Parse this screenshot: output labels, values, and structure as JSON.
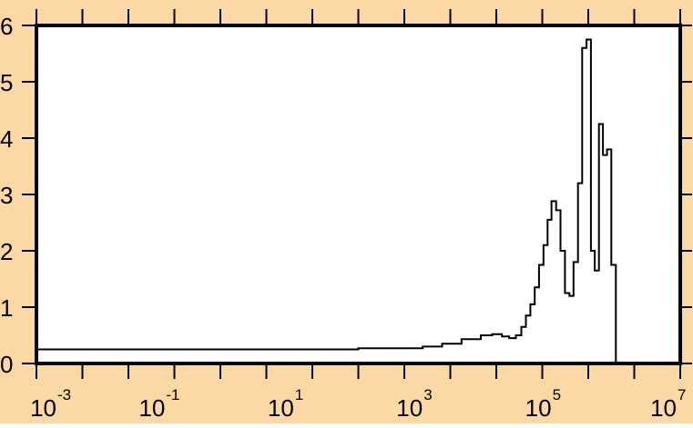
{
  "colors": {
    "background": "#fcd9a4",
    "plot_background": "#ffffff",
    "line": "#000000"
  },
  "chart_data": {
    "type": "line",
    "title": "",
    "xlabel": "",
    "ylabel": "",
    "x_scale": "log",
    "xlim": [
      0.001,
      10000000
    ],
    "ylim": [
      0,
      6
    ],
    "grid": false,
    "legend": "none",
    "x_ticks": [
      {
        "base": "10",
        "exp": "-3",
        "value": 0.001
      },
      {
        "base": "10",
        "exp": "-1",
        "value": 0.1
      },
      {
        "base": "10",
        "exp": "1",
        "value": 10
      },
      {
        "base": "10",
        "exp": "3",
        "value": 1000
      },
      {
        "base": "10",
        "exp": "5",
        "value": 100000
      },
      {
        "base": "10",
        "exp": "7",
        "value": 10000000
      }
    ],
    "y_ticks": [
      "0",
      "1",
      "2",
      "3",
      "4",
      "5",
      "6"
    ],
    "series": [
      {
        "step": true,
        "x": [
          0.001,
          10,
          100,
          1000,
          2000,
          4000,
          8000,
          12000,
          17000,
          22000,
          28000,
          34000,
          40000,
          47000,
          55000,
          64000,
          75000,
          87000,
          100000,
          118000,
          138000,
          162000,
          190000,
          220000,
          258000,
          300000,
          350000,
          410000,
          470000,
          545000,
          630000,
          730000,
          850000,
          1000000
        ],
        "y": [
          0.25,
          0.25,
          0.27,
          0.3,
          0.35,
          0.43,
          0.5,
          0.52,
          0.48,
          0.45,
          0.5,
          0.65,
          0.85,
          1.05,
          1.35,
          1.75,
          2.1,
          2.55,
          2.88,
          2.72,
          2.0,
          1.25,
          1.2,
          1.8,
          3.2,
          5.6,
          5.75,
          2.0,
          1.65,
          4.25,
          3.7,
          3.8,
          1.75,
          0.0
        ]
      }
    ]
  }
}
